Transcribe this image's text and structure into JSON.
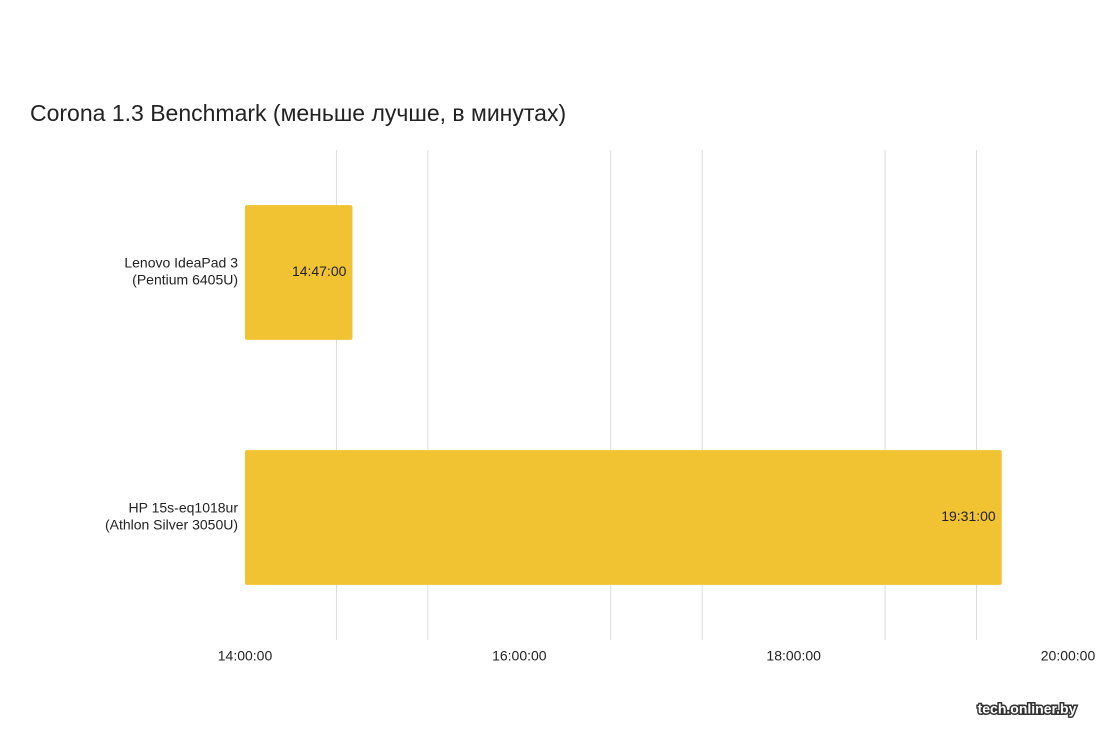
{
  "chart_data": {
    "type": "hbar",
    "title": "Corona 1.3 Benchmark (меньше лучше, в минутах)",
    "categories": [
      [
        "Lenovo IdeaPad 3",
        "(Pentium 6405U)"
      ],
      [
        "HP 15s-eq1018ur",
        "(Athlon Silver 3050U)"
      ]
    ],
    "values": [
      14.7833,
      19.5167
    ],
    "value_labels": [
      "14:47:00",
      "19:31:00"
    ],
    "color": "#f1c232",
    "xlim": [
      14,
      20
    ],
    "xticks": [
      {
        "value": 14,
        "label": "14:00:00"
      },
      {
        "value": 16,
        "label": "16:00:00"
      },
      {
        "value": 18,
        "label": "18:00:00"
      },
      {
        "value": 20,
        "label": "20:00:00"
      }
    ],
    "grid_lines": [
      14.6667,
      15.3333,
      16.6667,
      17.3333,
      18.6667,
      19.3333
    ],
    "watermark": "tech.onliner.by"
  }
}
